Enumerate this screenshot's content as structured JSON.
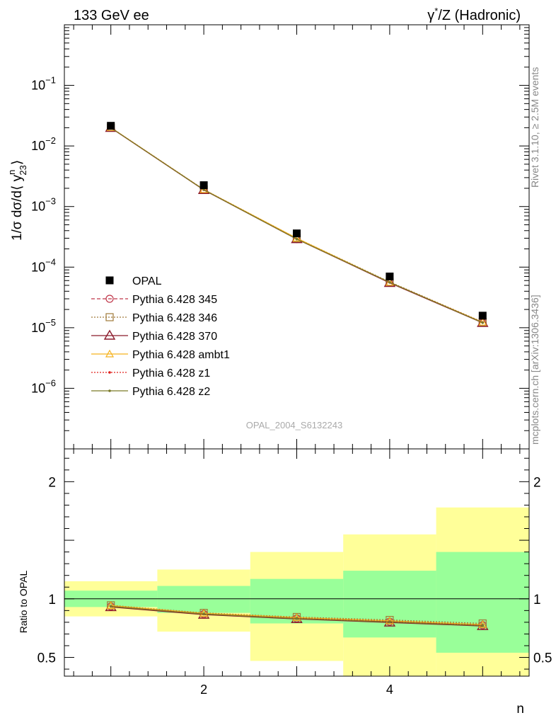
{
  "header": {
    "left": "133 GeV ee",
    "right_base": "γ",
    "right_sup": "*",
    "right_rest": "/Z (Hadronic)"
  },
  "side": {
    "rivet": "Rivet 3.1.10, ≥ 2.5M events",
    "mcplots": "mcplots.cern.ch [arXiv:1306.3436]"
  },
  "watermark": "OPAL_2004_S6132243",
  "ylabel_top": {
    "prefix": "1/σ dσ/d⟨ y",
    "sup": "n",
    "sub": "23",
    "suffix": "⟩"
  },
  "ylabel_bottom": "Ratio to OPAL",
  "xlabel": "n",
  "colors": {
    "data": "#000000",
    "p345": "#c0374a",
    "p346": "#a07a3a",
    "p370": "#8b1a2b",
    "ambt1": "#f5b21e",
    "z1": "#e0201c",
    "z2": "#7a7a28",
    "band_outer": "#ffff99",
    "band_inner": "#99ff99"
  },
  "chart_data": [
    {
      "type": "scatter",
      "panel": "main",
      "yscale": "log",
      "xlim": [
        0.5,
        5.5
      ],
      "ylim": [
        1e-07,
        1
      ],
      "x_ticks": [
        "2",
        "4"
      ],
      "y_ticks": [
        {
          "base": "10",
          "exp": "−1"
        },
        {
          "base": "10",
          "exp": "−2"
        },
        {
          "base": "10",
          "exp": "−3"
        },
        {
          "base": "10",
          "exp": "−4"
        },
        {
          "base": "10",
          "exp": "−5"
        },
        {
          "base": "10",
          "exp": "−6"
        }
      ],
      "legend": {
        "placement": "bottom-left",
        "entries": [
          "OPAL",
          "Pythia 6.428 345",
          "Pythia 6.428 346",
          "Pythia 6.428 370",
          "Pythia 6.428 ambt1",
          "Pythia 6.428 z1",
          "Pythia 6.428 z2"
        ]
      },
      "x": [
        1,
        2,
        3,
        4,
        5
      ],
      "data": {
        "name": "OPAL",
        "values": [
          0.0215,
          0.00225,
          0.00036,
          7e-05,
          1.58e-05
        ]
      },
      "series": [
        {
          "name": "Pythia 6.428 345",
          "values": [
            0.02,
            0.0019,
            0.00029,
            5.6e-05,
            1.22e-05
          ]
        },
        {
          "name": "Pythia 6.428 346",
          "values": [
            0.0201,
            0.00191,
            0.0003,
            5.7e-05,
            1.24e-05
          ]
        },
        {
          "name": "Pythia 6.428 370",
          "values": [
            0.0199,
            0.00188,
            0.00029,
            5.5e-05,
            1.2e-05
          ]
        },
        {
          "name": "Pythia 6.428 ambt1",
          "values": [
            0.0201,
            0.0019,
            0.0003,
            5.6e-05,
            1.23e-05
          ]
        },
        {
          "name": "Pythia 6.428 z1",
          "values": [
            0.02,
            0.00189,
            0.00029,
            5.6e-05,
            1.22e-05
          ]
        },
        {
          "name": "Pythia 6.428 z2",
          "values": [
            0.02,
            0.00189,
            0.00029,
            5.6e-05,
            1.21e-05
          ]
        }
      ]
    },
    {
      "type": "line",
      "panel": "ratio",
      "xlim": [
        0.5,
        5.5
      ],
      "ylim": [
        0.34,
        2.28
      ],
      "x_ticks": [
        "2",
        "4"
      ],
      "y_ticks": [
        "0.5",
        "1",
        "2"
      ],
      "bands": {
        "bin_edges": [
          0.5,
          1.5,
          2.5,
          3.5,
          4.5,
          5.5
        ],
        "inner": [
          [
            0.93,
            1.07
          ],
          [
            0.88,
            1.11
          ],
          [
            0.79,
            1.17
          ],
          [
            0.67,
            1.24
          ],
          [
            0.54,
            1.4
          ]
        ],
        "outer": [
          [
            0.85,
            1.15
          ],
          [
            0.72,
            1.25
          ],
          [
            0.47,
            1.4
          ],
          [
            0.34,
            1.55
          ],
          [
            0.34,
            1.78
          ]
        ]
      },
      "x": [
        1,
        2,
        3,
        4,
        5
      ],
      "series": [
        {
          "name": "Pythia 6.428 345",
          "values": [
            0.935,
            0.87,
            0.833,
            0.805,
            0.775
          ]
        },
        {
          "name": "Pythia 6.428 346",
          "values": [
            0.945,
            0.88,
            0.845,
            0.82,
            0.79
          ]
        },
        {
          "name": "Pythia 6.428 370",
          "values": [
            0.93,
            0.865,
            0.828,
            0.798,
            0.768
          ]
        },
        {
          "name": "Pythia 6.428 ambt1",
          "values": [
            0.942,
            0.876,
            0.84,
            0.812,
            0.78
          ]
        },
        {
          "name": "Pythia 6.428 z1",
          "values": [
            0.936,
            0.871,
            0.834,
            0.806,
            0.775
          ]
        },
        {
          "name": "Pythia 6.428 z2",
          "values": [
            0.935,
            0.87,
            0.832,
            0.803,
            0.772
          ]
        }
      ]
    }
  ]
}
